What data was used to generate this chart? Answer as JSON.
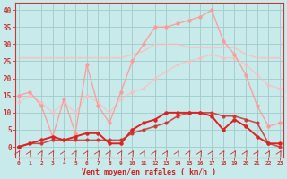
{
  "x": [
    0,
    1,
    2,
    3,
    4,
    5,
    6,
    7,
    8,
    9,
    10,
    11,
    12,
    13,
    14,
    15,
    16,
    17,
    18,
    19,
    20,
    21,
    22,
    23
  ],
  "line_rafalmax": [
    15,
    16,
    12,
    3,
    14,
    4,
    24,
    12,
    7,
    16,
    25,
    30,
    35,
    35,
    36,
    37,
    38,
    40,
    31,
    27,
    21,
    12,
    6,
    7
  ],
  "line_rafalmed": [
    26,
    26,
    26,
    26,
    26,
    26,
    26,
    26,
    26,
    26,
    27,
    28,
    30,
    30,
    30,
    29,
    29,
    29,
    29,
    29,
    27,
    26,
    26,
    26
  ],
  "line_moymax": [
    13,
    15,
    13,
    10,
    13,
    10,
    15,
    13,
    10,
    14,
    16,
    17,
    20,
    22,
    24,
    25,
    26,
    27,
    26,
    26,
    24,
    21,
    18,
    17
  ],
  "line_vent1": [
    0,
    1,
    2,
    3,
    2,
    3,
    4,
    4,
    1,
    1,
    5,
    7,
    8,
    10,
    10,
    10,
    10,
    9,
    5,
    8,
    6,
    3,
    1,
    1
  ],
  "line_vent2": [
    0,
    1,
    1,
    2,
    2,
    2,
    2,
    2,
    2,
    2,
    4,
    5,
    6,
    7,
    9,
    10,
    10,
    10,
    9,
    9,
    8,
    7,
    1,
    0
  ],
  "color_rafalmax": "#ff9999",
  "color_rafalmed": "#ffbbbb",
  "color_moymax": "#ffbbbb",
  "color_vent1": "#dd2222",
  "color_vent2": "#cc3333",
  "bg_color": "#c8eaea",
  "grid_color": "#a0cccc",
  "xlabel": "Vent moyen/en rafales ( km/h )",
  "ylabel_ticks": [
    0,
    5,
    10,
    15,
    20,
    25,
    30,
    35,
    40
  ],
  "xlim": [
    -0.3,
    23.3
  ],
  "ylim": [
    0,
    42
  ]
}
